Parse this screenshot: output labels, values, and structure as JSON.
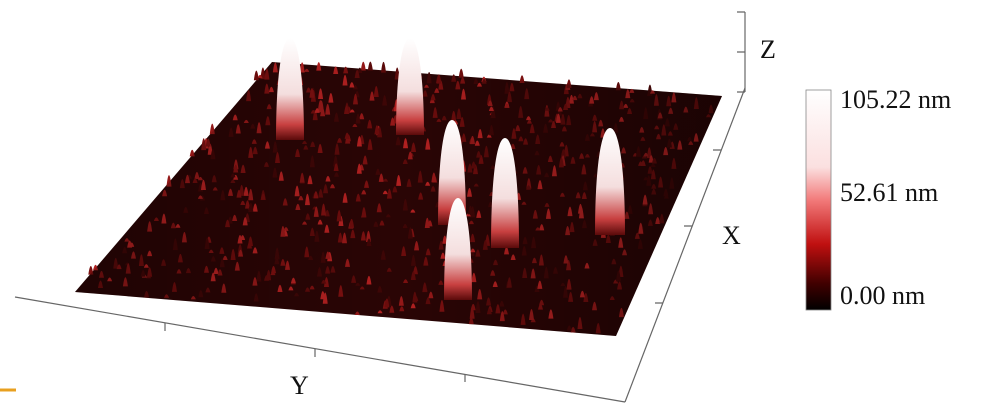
{
  "axes": {
    "z": "Z",
    "x": "X",
    "y": "Y"
  },
  "colorbar": {
    "max": "105.22 nm",
    "mid": "52.61 nm",
    "min": "0.00 nm"
  }
}
